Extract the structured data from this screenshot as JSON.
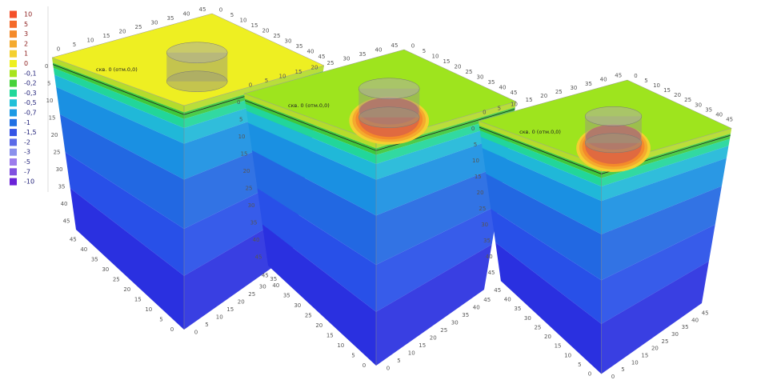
{
  "legend": {
    "items": [
      {
        "label": "10",
        "color": "#f4502a"
      },
      {
        "label": "5",
        "color": "#f46a2a"
      },
      {
        "label": "3",
        "color": "#f48a2a"
      },
      {
        "label": "2",
        "color": "#f4aa2e"
      },
      {
        "label": "1",
        "color": "#f4d030"
      },
      {
        "label": "0",
        "color": "#eef020"
      },
      {
        "label": "-0,1",
        "color": "#a8e41e"
      },
      {
        "label": "-0,2",
        "color": "#46d23a"
      },
      {
        "label": "-0,3",
        "color": "#22d89a"
      },
      {
        "label": "-0,5",
        "color": "#20c0d8"
      },
      {
        "label": "-0,7",
        "color": "#1c9ae4"
      },
      {
        "label": "-1",
        "color": "#2070e4"
      },
      {
        "label": "-1,5",
        "color": "#3454e6"
      },
      {
        "label": "-2",
        "color": "#5a6ae8"
      },
      {
        "label": "-3",
        "color": "#8a90ec"
      },
      {
        "label": "-5",
        "color": "#9c7cec"
      },
      {
        "label": "-7",
        "color": "#8050e0"
      },
      {
        "label": "-10",
        "color": "#6a22d8"
      }
    ]
  },
  "borehole_label": "скв. 0 (отм.0,0)",
  "axis_ticks": [
    "0",
    "5",
    "10",
    "15",
    "20",
    "25",
    "30",
    "35",
    "40",
    "45"
  ]
}
